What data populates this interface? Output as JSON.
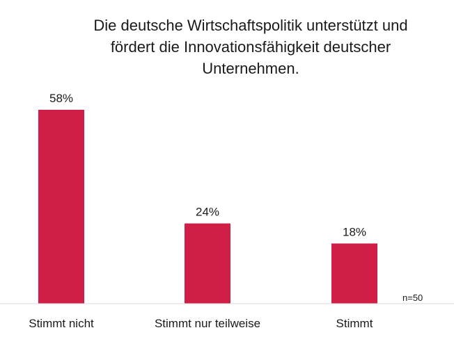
{
  "chart_data": {
    "type": "bar",
    "title_lines": [
      "Die deutsche Wirtschaftspolitik unterstützt und",
      "fördert die Innovationsfähigkeit deutscher",
      "Unternehmen."
    ],
    "categories": [
      "Stimmt nicht",
      "Stimmt nur teilweise",
      "Stimmt"
    ],
    "values": [
      58,
      24,
      18
    ],
    "value_labels": [
      "58%",
      "24%",
      "18%"
    ],
    "unit": "%",
    "ylim": [
      0,
      58
    ],
    "grid": false,
    "legend": "none",
    "note": "n=50",
    "bar_color": "#d11e47",
    "axis_color": "#d9d9d9",
    "text_color": "#1a1a1a"
  }
}
